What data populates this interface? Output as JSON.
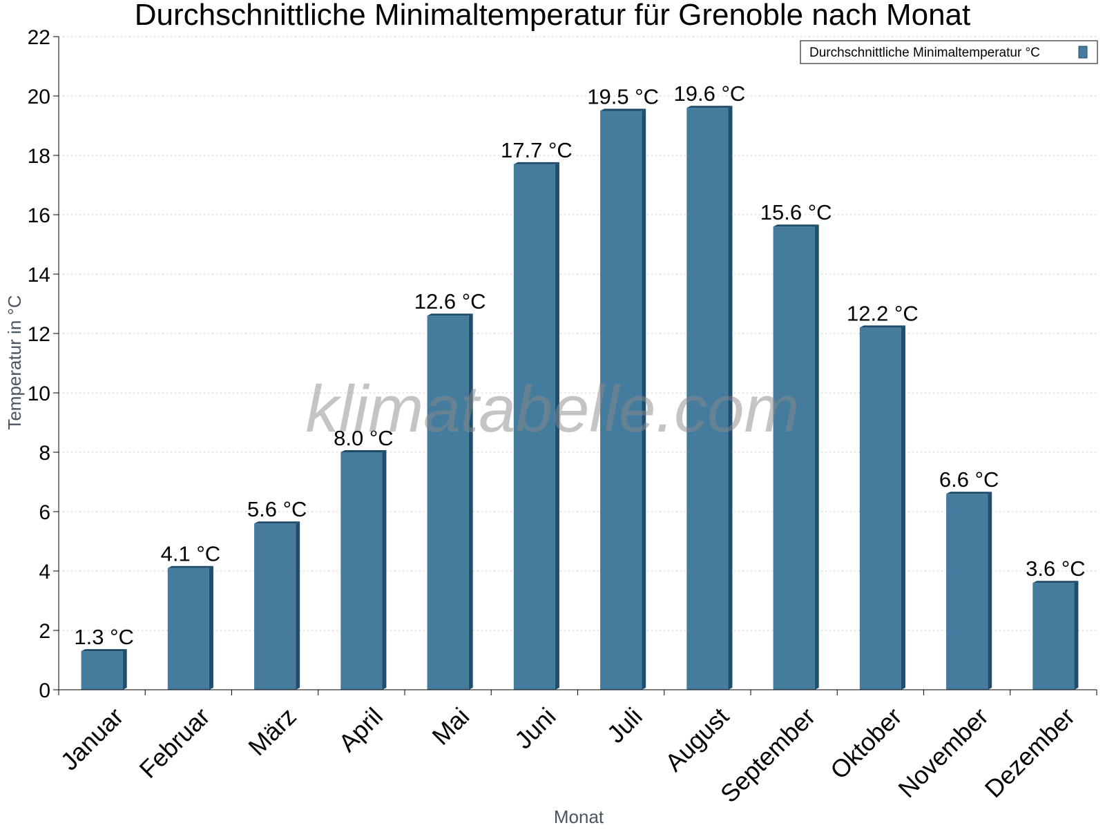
{
  "chart_data": {
    "type": "bar",
    "title": "Durchschnittliche Minimaltemperatur für Grenoble nach Monat",
    "xlabel": "Monat",
    "ylabel": "Temperatur in °C",
    "categories": [
      "Januar",
      "Februar",
      "März",
      "April",
      "Mai",
      "Juni",
      "Juli",
      "August",
      "September",
      "Oktober",
      "November",
      "Dezember"
    ],
    "series": [
      {
        "name": "Durchschnittliche Minimaltemperatur °C",
        "values": [
          1.3,
          4.1,
          5.6,
          8.0,
          12.6,
          17.7,
          19.5,
          19.6,
          15.6,
          12.2,
          6.6,
          3.6
        ],
        "labels": [
          "1.3 °C",
          "4.1 °C",
          "5.6 °C",
          "8.0 °C",
          "12.6 °C",
          "17.7 °C",
          "19.5 °C",
          "19.6 °C",
          "15.6 °C",
          "12.2 °C",
          "6.6 °C",
          "3.6 °C"
        ]
      }
    ],
    "ylim": [
      0,
      22
    ],
    "yticks": [
      0,
      2,
      4,
      6,
      8,
      10,
      12,
      14,
      16,
      18,
      20,
      22
    ],
    "grid": true,
    "legend_position": "top-right",
    "colors": {
      "bar": "#457b9d",
      "bar_side": "#1f4e6e",
      "bar_top": "#1d4a69",
      "grid": "#c8c8c8"
    },
    "watermark": "klimatabelle.com"
  }
}
